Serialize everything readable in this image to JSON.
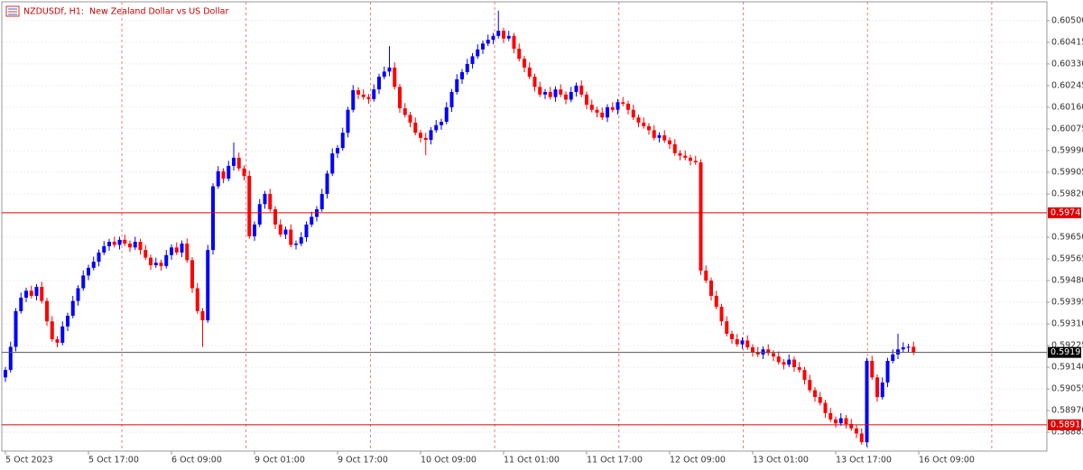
{
  "chart_data": {
    "type": "candlestick",
    "title": "NZDUSDf, H1:  New Zealand Dollar vs US Dollar",
    "x_labels": [
      "5 Oct 2023",
      "5 Oct 17:00",
      "6 Oct 09:00",
      "9 Oct 01:00",
      "9 Oct 17:00",
      "10 Oct 09:00",
      "11 Oct 01:00",
      "11 Oct 17:00",
      "12 Oct 09:00",
      "13 Oct 01:00",
      "13 Oct 17:00",
      "16 Oct 09:00"
    ],
    "up_color": "#0000ff",
    "down_color": "#ff0000",
    "ylim": [
      0.58811,
      0.60581
    ],
    "yticks": [
      {
        "value": 0.605,
        "label": "0.60500"
      },
      {
        "value": 0.60415,
        "label": "0.60415"
      },
      {
        "value": 0.6033,
        "label": "0.60330"
      },
      {
        "value": 0.60245,
        "label": "0.60245"
      },
      {
        "value": 0.6016,
        "label": "0.60160"
      },
      {
        "value": 0.60075,
        "label": "0.60075"
      },
      {
        "value": 0.5999,
        "label": "0.59990"
      },
      {
        "value": 0.59905,
        "label": "0.59905"
      },
      {
        "value": 0.5982,
        "label": "0.59820"
      },
      {
        "value": 0.5965,
        "label": "0.59650"
      },
      {
        "value": 0.59565,
        "label": "0.59565"
      },
      {
        "value": 0.5948,
        "label": "0.59480"
      },
      {
        "value": 0.59395,
        "label": "0.59395"
      },
      {
        "value": 0.5931,
        "label": "0.59310"
      },
      {
        "value": 0.59225,
        "label": "0.59225"
      },
      {
        "value": 0.5914,
        "label": "0.59140"
      },
      {
        "value": 0.59055,
        "label": "0.59055"
      },
      {
        "value": 0.5897,
        "label": "0.58970"
      },
      {
        "value": 0.58885,
        "label": "0.58885"
      }
    ],
    "grid": true,
    "levels": [
      0.59746,
      0.58914
    ],
    "level_color": "#e00000",
    "bid": 0.59198,
    "open": [
      0.591,
      0.59129,
      0.5922,
      0.5936,
      0.59413,
      0.5944,
      0.5942,
      0.59455,
      0.594,
      0.5932,
      0.5925,
      0.59236,
      0.593,
      0.59342,
      0.594,
      0.5945,
      0.595,
      0.5953,
      0.59554,
      0.5959,
      0.59615,
      0.59632,
      0.5962,
      0.5964,
      0.59625,
      0.5961,
      0.59632,
      0.596,
      0.5957,
      0.5954,
      0.5955,
      0.59537,
      0.5958,
      0.5961,
      0.5959,
      0.59625,
      0.5956,
      0.5945,
      0.5936,
      0.59324,
      0.596,
      0.5985,
      0.59909,
      0.5988,
      0.5993,
      0.59962,
      0.5992,
      0.59891,
      0.59654,
      0.597,
      0.5978,
      0.5982,
      0.5976,
      0.597,
      0.59661,
      0.5968,
      0.5962,
      0.59625,
      0.5965,
      0.597,
      0.5973,
      0.5976,
      0.5982,
      0.599,
      0.59979,
      0.6,
      0.6006,
      0.6015,
      0.60227,
      0.6021,
      0.602,
      0.60192,
      0.6023,
      0.6028,
      0.603,
      0.60316,
      0.6024,
      0.60156,
      0.6013,
      0.601,
      0.6006,
      0.6004,
      0.60032,
      0.6007,
      0.6009,
      0.60103,
      0.6016,
      0.6022,
      0.6027,
      0.60298,
      0.6033,
      0.6036,
      0.60387,
      0.6041,
      0.60425,
      0.6044,
      0.6046,
      0.6043,
      0.6044,
      0.6039,
      0.6035,
      0.60316,
      0.6028,
      0.6024,
      0.6021,
      0.6022,
      0.602,
      0.6023,
      0.6021,
      0.6019,
      0.6022,
      0.60245,
      0.6021,
      0.6017,
      0.6015,
      0.60139,
      0.6012,
      0.6016,
      0.6015,
      0.6018,
      0.60174,
      0.6015,
      0.6012,
      0.601,
      0.60086,
      0.6007,
      0.6004,
      0.6005,
      0.6003,
      0.60015,
      0.5998,
      0.5997,
      0.59962,
      0.5995,
      0.59944,
      0.59519,
      0.5948,
      0.5942,
      0.59377,
      0.5932,
      0.59271,
      0.5925,
      0.5923,
      0.59245,
      0.59218,
      0.592,
      0.5919,
      0.5921,
      0.59195,
      0.59182,
      0.5916,
      0.5915,
      0.5917,
      0.5914,
      0.59129,
      0.5909,
      0.5905,
      0.59023,
      0.59,
      0.5896,
      0.58935,
      0.5892,
      0.5894,
      0.58917,
      0.589,
      0.5888,
      0.58846,
      0.59165,
      0.591,
      0.59023,
      0.5908,
      0.59165,
      0.5919,
      0.5921,
      0.59218,
      0.5922
    ],
    "high": [
      0.59141,
      0.5924,
      0.59372,
      0.59433,
      0.59452,
      0.5946,
      0.59467,
      0.59475,
      0.59412,
      0.5934,
      0.59262,
      0.5932,
      0.59354,
      0.5942,
      0.59462,
      0.5952,
      0.59542,
      0.59574,
      0.59602,
      0.59635,
      0.59644,
      0.59652,
      0.59652,
      0.5966,
      0.59637,
      0.59652,
      0.59644,
      0.5962,
      0.59582,
      0.5957,
      0.59562,
      0.596,
      0.59622,
      0.5963,
      0.59637,
      0.59645,
      0.59572,
      0.5947,
      0.59372,
      0.5962,
      0.59862,
      0.59929,
      0.59921,
      0.5995,
      0.60022,
      0.59982,
      0.59932,
      0.59911,
      0.59712,
      0.598,
      0.59832,
      0.5984,
      0.59772,
      0.5972,
      0.59692,
      0.597,
      0.59637,
      0.5967,
      0.59712,
      0.5975,
      0.59772,
      0.5984,
      0.59912,
      0.59999,
      0.60012,
      0.6008,
      0.60162,
      0.60247,
      0.60239,
      0.6023,
      0.60212,
      0.6025,
      0.60292,
      0.6032,
      0.604,
      0.60336,
      0.60252,
      0.60176,
      0.60142,
      0.6012,
      0.60072,
      0.6006,
      0.60082,
      0.6011,
      0.60115,
      0.6018,
      0.60232,
      0.6029,
      0.6031,
      0.6035,
      0.60372,
      0.60407,
      0.60422,
      0.60445,
      0.60452,
      0.60539,
      0.60472,
      0.6046,
      0.60452,
      0.6041,
      0.60362,
      0.60336,
      0.60292,
      0.6026,
      0.60232,
      0.6024,
      0.60242,
      0.6025,
      0.60222,
      0.6024,
      0.60257,
      0.60265,
      0.60222,
      0.6019,
      0.60162,
      0.60159,
      0.60172,
      0.6018,
      0.60192,
      0.602,
      0.60186,
      0.6017,
      0.60132,
      0.6012,
      0.60098,
      0.6009,
      0.60062,
      0.6007,
      0.60042,
      0.60035,
      0.59992,
      0.5999,
      0.59974,
      0.5997,
      0.59956,
      0.59539,
      0.59492,
      0.5944,
      0.59389,
      0.5934,
      0.59283,
      0.5927,
      0.59257,
      0.59265,
      0.5923,
      0.5922,
      0.59222,
      0.5923,
      0.59207,
      0.59202,
      0.59172,
      0.5919,
      0.59182,
      0.5916,
      0.59141,
      0.5911,
      0.59062,
      0.59043,
      0.59012,
      0.5898,
      0.58947,
      0.5896,
      0.58952,
      0.58937,
      0.58912,
      0.589,
      0.59177,
      0.59185,
      0.59112,
      0.591,
      0.59177,
      0.5921,
      0.59271,
      0.59238,
      0.59232,
      0.5924
    ],
    "low": [
      0.59082,
      0.59119,
      0.59202,
      0.5935,
      0.59395,
      0.5941,
      0.59402,
      0.5939,
      0.59302,
      0.5924,
      0.59218,
      0.59226,
      0.59282,
      0.59332,
      0.59382,
      0.5944,
      0.59482,
      0.5952,
      0.59536,
      0.5958,
      0.59597,
      0.5961,
      0.59602,
      0.59615,
      0.59592,
      0.596,
      0.59582,
      0.5956,
      0.59522,
      0.5953,
      0.59519,
      0.59527,
      0.59562,
      0.5958,
      0.59572,
      0.5955,
      0.59432,
      0.5935,
      0.5922,
      0.59314,
      0.59582,
      0.5984,
      0.59862,
      0.5987,
      0.59912,
      0.5991,
      0.59873,
      0.59644,
      0.59636,
      0.5969,
      0.59762,
      0.5975,
      0.59682,
      0.59651,
      0.59643,
      0.5961,
      0.59602,
      0.59615,
      0.59632,
      0.5969,
      0.59712,
      0.5975,
      0.59802,
      0.5989,
      0.59961,
      0.5999,
      0.60042,
      0.6014,
      0.60192,
      0.6019,
      0.60174,
      0.60182,
      0.60212,
      0.6027,
      0.60282,
      0.6023,
      0.60138,
      0.6012,
      0.60082,
      0.6005,
      0.60022,
      0.59972,
      0.60014,
      0.6006,
      0.60072,
      0.60093,
      0.60142,
      0.6021,
      0.60252,
      0.60288,
      0.60312,
      0.6035,
      0.60369,
      0.604,
      0.60407,
      0.6043,
      0.60412,
      0.6042,
      0.60372,
      0.6034,
      0.60298,
      0.6027,
      0.60222,
      0.602,
      0.60192,
      0.6019,
      0.60182,
      0.602,
      0.60172,
      0.6018,
      0.60202,
      0.602,
      0.60152,
      0.6014,
      0.60121,
      0.6011,
      0.60102,
      0.6014,
      0.60132,
      0.60164,
      0.60132,
      0.6011,
      0.60082,
      0.60076,
      0.60052,
      0.6003,
      0.60022,
      0.6002,
      0.59997,
      0.5997,
      0.59952,
      0.59952,
      0.59932,
      0.59934,
      0.59501,
      0.5947,
      0.59402,
      0.59367,
      0.59302,
      0.59261,
      0.59232,
      0.5922,
      0.59212,
      0.59208,
      0.59182,
      0.5918,
      0.59172,
      0.59185,
      0.59164,
      0.5915,
      0.59132,
      0.5914,
      0.59122,
      0.59119,
      0.59072,
      0.5904,
      0.59005,
      0.5899,
      0.58942,
      0.58925,
      0.58902,
      0.5891,
      0.58899,
      0.5889,
      0.58862,
      0.58836,
      0.58828,
      0.5909,
      0.59005,
      0.59013,
      0.59062,
      0.59155,
      0.59172,
      0.592,
      0.592,
      0.59188
    ],
    "close": [
      0.59129,
      0.5922,
      0.5936,
      0.59413,
      0.5944,
      0.5942,
      0.59455,
      0.594,
      0.5932,
      0.5925,
      0.59236,
      0.593,
      0.59342,
      0.594,
      0.5945,
      0.595,
      0.5953,
      0.59554,
      0.5959,
      0.59615,
      0.59632,
      0.5962,
      0.5964,
      0.59625,
      0.5961,
      0.59632,
      0.596,
      0.5957,
      0.5954,
      0.5955,
      0.59537,
      0.5958,
      0.5961,
      0.5959,
      0.59625,
      0.5956,
      0.5945,
      0.5936,
      0.59324,
      0.596,
      0.5985,
      0.59909,
      0.5988,
      0.5993,
      0.59962,
      0.5992,
      0.59891,
      0.59654,
      0.597,
      0.5978,
      0.5982,
      0.5976,
      0.597,
      0.59661,
      0.5968,
      0.5962,
      0.59625,
      0.5965,
      0.597,
      0.5973,
      0.5976,
      0.5982,
      0.599,
      0.59979,
      0.6,
      0.6006,
      0.6015,
      0.60227,
      0.6021,
      0.602,
      0.60192,
      0.6023,
      0.6028,
      0.603,
      0.60316,
      0.6024,
      0.60156,
      0.6013,
      0.601,
      0.6006,
      0.6004,
      0.60032,
      0.6007,
      0.6009,
      0.60103,
      0.6016,
      0.6022,
      0.6027,
      0.60298,
      0.6033,
      0.6036,
      0.60387,
      0.6041,
      0.60425,
      0.6044,
      0.6046,
      0.6043,
      0.6044,
      0.6039,
      0.6035,
      0.60316,
      0.6028,
      0.6024,
      0.6021,
      0.6022,
      0.602,
      0.6023,
      0.6021,
      0.6019,
      0.6022,
      0.60245,
      0.6021,
      0.6017,
      0.6015,
      0.60139,
      0.6012,
      0.6016,
      0.6015,
      0.6018,
      0.60174,
      0.6015,
      0.6012,
      0.601,
      0.60086,
      0.6007,
      0.6004,
      0.6005,
      0.6003,
      0.60015,
      0.5998,
      0.5997,
      0.59962,
      0.5995,
      0.59944,
      0.59519,
      0.5948,
      0.5942,
      0.59377,
      0.5932,
      0.59271,
      0.5925,
      0.5923,
      0.59245,
      0.59218,
      0.592,
      0.5919,
      0.5921,
      0.59195,
      0.59182,
      0.5916,
      0.5915,
      0.5917,
      0.5914,
      0.59129,
      0.5909,
      0.5905,
      0.59023,
      0.59,
      0.5896,
      0.58935,
      0.5892,
      0.5894,
      0.58917,
      0.589,
      0.5888,
      0.58846,
      0.59165,
      0.591,
      0.59023,
      0.5908,
      0.59165,
      0.5919,
      0.5921,
      0.59218,
      0.5922,
      0.59198
    ]
  }
}
